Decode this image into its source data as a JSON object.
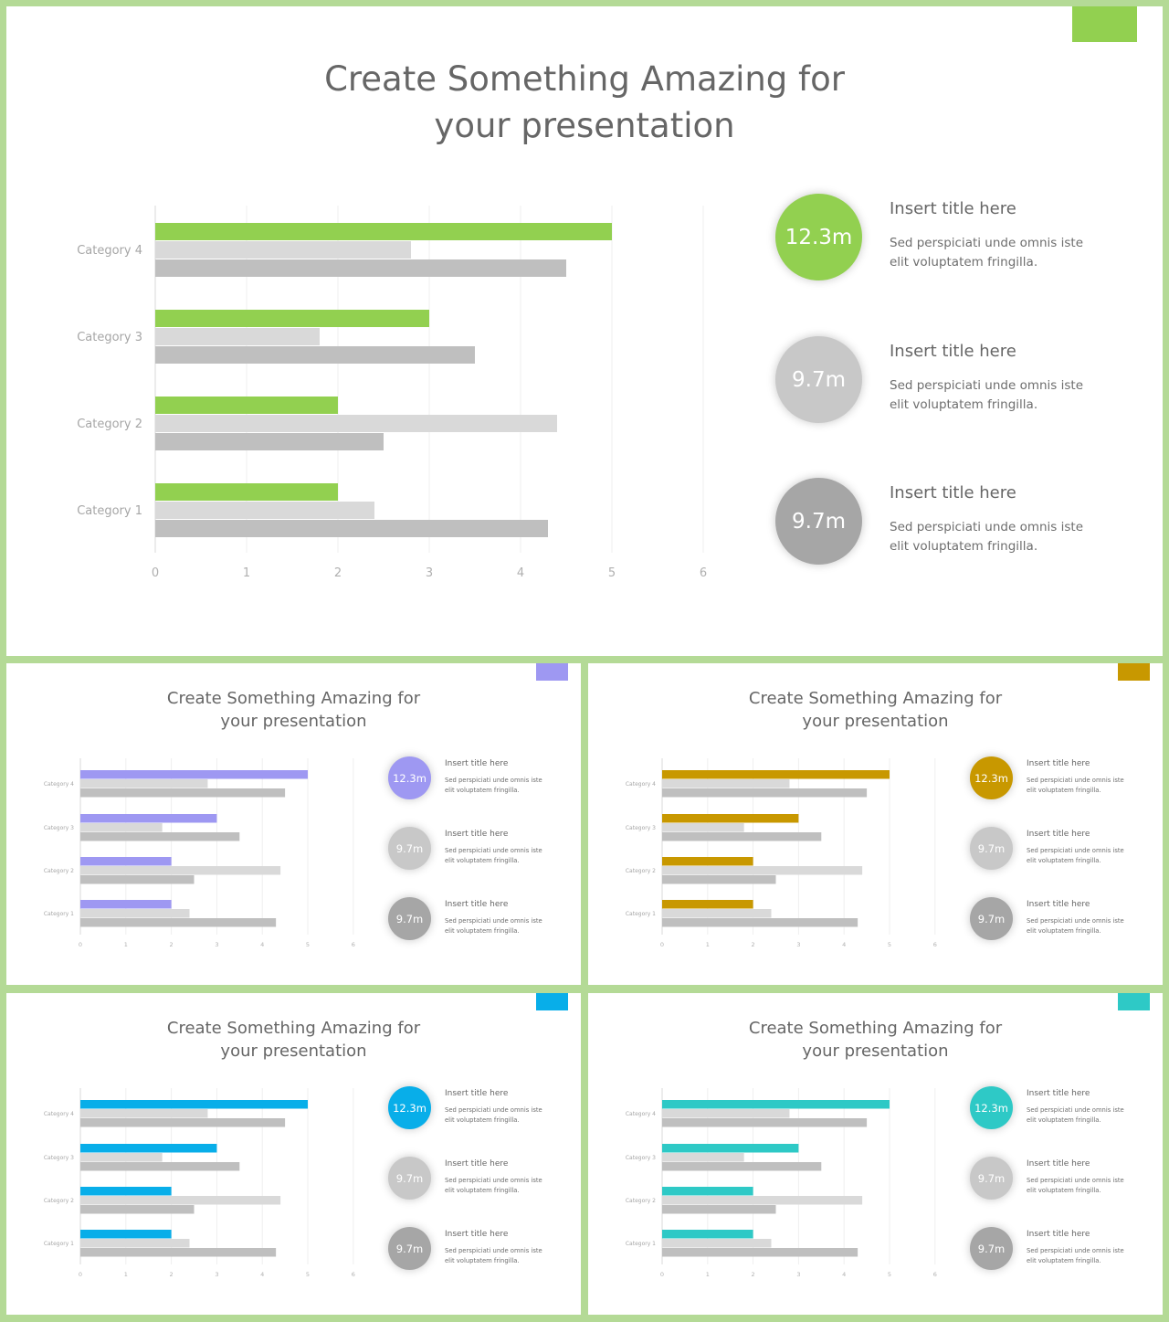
{
  "slides": [
    {
      "accent": "#92d050"
    },
    {
      "accent": "#9e98f2"
    },
    {
      "accent": "#c89800"
    },
    {
      "accent": "#08aee9"
    },
    {
      "accent": "#2ec9c6"
    }
  ],
  "title": {
    "line1": "Create Something Amazing for",
    "line2": "your presentation"
  },
  "stats": [
    {
      "value": "12.3m",
      "title": "Insert title here",
      "body": "Sed perspiciati unde omnis iste elit voluptatem fringilla.",
      "color": "accent"
    },
    {
      "value": "9.7m",
      "title": "Insert title here",
      "body": "Sed perspiciati unde omnis iste elit voluptatem fringilla.",
      "color": "#c8c8c8"
    },
    {
      "value": "9.7m",
      "title": "Insert title here",
      "body": "Sed perspiciati unde omnis iste elit voluptatem fringilla.",
      "color": "#a6a6a6"
    }
  ],
  "chart_data": {
    "type": "bar",
    "orientation": "horizontal",
    "categories": [
      "Category 1",
      "Category 2",
      "Category 3",
      "Category 4"
    ],
    "series": [
      {
        "values": [
          2,
          2,
          3,
          5
        ],
        "color": "accent"
      },
      {
        "values": [
          2.4,
          4.4,
          1.8,
          2.8
        ],
        "color": "#d9d9d9"
      },
      {
        "values": [
          4.3,
          2.5,
          3.5,
          4.5
        ],
        "color": "#bfbfbf"
      }
    ],
    "xlim": [
      0,
      6
    ],
    "xticks": [
      0,
      1,
      2,
      3,
      4,
      5,
      6
    ],
    "grid": true
  }
}
